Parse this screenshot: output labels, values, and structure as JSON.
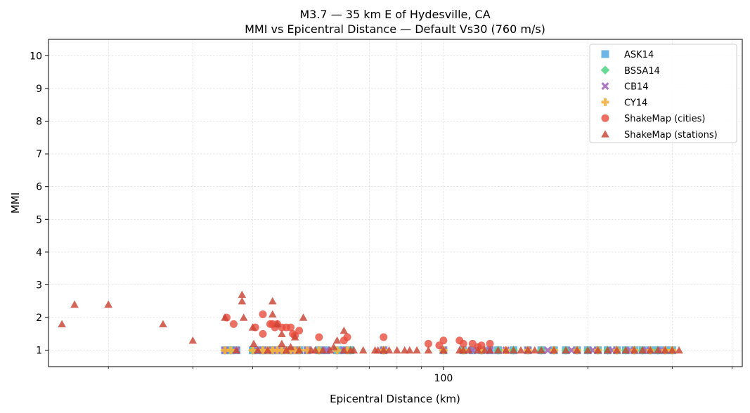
{
  "chart_data": {
    "type": "scatter",
    "title": "M3.7 — 35 km E of Hydesville, CA",
    "subtitle": "MMI vs Epicentral Distance — Default Vs30 (760 m/s)",
    "xlabel": "Epicentral Distance (km)",
    "ylabel": "MMI",
    "xscale": "log",
    "xlim": [
      15,
      420
    ],
    "ylim": [
      0.5,
      10.5
    ],
    "x_ticks": [
      100
    ],
    "x_tick_labels": [
      "100"
    ],
    "x_minor_ticks": [
      20,
      30,
      40,
      50,
      60,
      70,
      80,
      90,
      200,
      300,
      400
    ],
    "y_ticks": [
      1,
      2,
      3,
      4,
      5,
      6,
      7,
      8,
      9,
      10
    ],
    "y_tick_labels": [
      "1",
      "2",
      "3",
      "4",
      "5",
      "6",
      "7",
      "8",
      "9",
      "10"
    ],
    "grid": true,
    "legend_position": "top-right",
    "series": [
      {
        "name": "ASK14",
        "marker": "square",
        "color": "#5DADE2",
        "points": [
          [
            35,
            1
          ],
          [
            36,
            1
          ],
          [
            37,
            1
          ],
          [
            40,
            1
          ],
          [
            41,
            1
          ],
          [
            42,
            1
          ],
          [
            43,
            1
          ],
          [
            44,
            1
          ],
          [
            45,
            1
          ],
          [
            46,
            1
          ],
          [
            47,
            1
          ],
          [
            48,
            1
          ],
          [
            49,
            1
          ],
          [
            50,
            1
          ],
          [
            52,
            1
          ],
          [
            55,
            1
          ],
          [
            57,
            1
          ],
          [
            60,
            1
          ],
          [
            62,
            1
          ],
          [
            64,
            1
          ],
          [
            75,
            1
          ],
          [
            100,
            1
          ],
          [
            110,
            1
          ],
          [
            115,
            1
          ],
          [
            120,
            1
          ],
          [
            125,
            1
          ],
          [
            130,
            1
          ],
          [
            140,
            1
          ],
          [
            150,
            1
          ],
          [
            160,
            1
          ],
          [
            170,
            1
          ],
          [
            180,
            1
          ],
          [
            190,
            1
          ],
          [
            200,
            1
          ],
          [
            210,
            1
          ],
          [
            220,
            1
          ],
          [
            230,
            1
          ],
          [
            240,
            1
          ],
          [
            250,
            1
          ],
          [
            260,
            1
          ],
          [
            270,
            1
          ],
          [
            280,
            1
          ],
          [
            290,
            1
          ],
          [
            300,
            1
          ]
        ]
      },
      {
        "name": "BSSA14",
        "marker": "diamond",
        "color": "#58D68D",
        "points": [
          [
            35,
            1
          ],
          [
            36,
            1
          ],
          [
            40,
            1
          ],
          [
            42,
            1
          ],
          [
            44,
            1
          ],
          [
            46,
            1
          ],
          [
            48,
            1
          ],
          [
            50,
            1
          ],
          [
            55,
            1
          ],
          [
            60,
            1
          ],
          [
            64,
            1
          ],
          [
            75,
            1
          ],
          [
            100,
            1
          ],
          [
            110,
            1
          ],
          [
            120,
            1
          ],
          [
            130,
            1
          ],
          [
            140,
            1
          ],
          [
            150,
            1
          ],
          [
            160,
            1
          ],
          [
            170,
            1
          ],
          [
            180,
            1
          ],
          [
            190,
            1
          ],
          [
            200,
            1
          ],
          [
            210,
            1
          ],
          [
            220,
            1
          ],
          [
            230,
            1
          ],
          [
            240,
            1
          ],
          [
            250,
            1
          ],
          [
            260,
            1
          ],
          [
            270,
            1
          ],
          [
            280,
            1
          ],
          [
            290,
            1
          ],
          [
            300,
            1
          ]
        ]
      },
      {
        "name": "CB14",
        "marker": "x",
        "color": "#A569BD",
        "points": [
          [
            35,
            1
          ],
          [
            37,
            1
          ],
          [
            41,
            1
          ],
          [
            43,
            1
          ],
          [
            45,
            1
          ],
          [
            47,
            1
          ],
          [
            49,
            1
          ],
          [
            52,
            1
          ],
          [
            57,
            1
          ],
          [
            62,
            1
          ],
          [
            75,
            1
          ],
          [
            100,
            1
          ],
          [
            115,
            1
          ],
          [
            125,
            1
          ],
          [
            135,
            1
          ],
          [
            150,
            1
          ],
          [
            165,
            1
          ],
          [
            185,
            1
          ],
          [
            205,
            1
          ],
          [
            225,
            1
          ],
          [
            245,
            1
          ],
          [
            265,
            1
          ],
          [
            285,
            1
          ]
        ]
      },
      {
        "name": "CY14",
        "marker": "plus",
        "color": "#F5B041",
        "points": [
          [
            35,
            1
          ],
          [
            36,
            1
          ],
          [
            40,
            1
          ],
          [
            42,
            1
          ],
          [
            43,
            1
          ],
          [
            44,
            1
          ],
          [
            45,
            1
          ],
          [
            46,
            1
          ],
          [
            47,
            1
          ],
          [
            48,
            1
          ],
          [
            49,
            1
          ],
          [
            50,
            1
          ],
          [
            52,
            1
          ],
          [
            55,
            1
          ],
          [
            60,
            1
          ],
          [
            63,
            1
          ],
          [
            75,
            1
          ],
          [
            100,
            1
          ],
          [
            110,
            1
          ],
          [
            120,
            1
          ],
          [
            135,
            1
          ],
          [
            150,
            1
          ],
          [
            170,
            1
          ],
          [
            190,
            1
          ],
          [
            210,
            1
          ],
          [
            230,
            1
          ],
          [
            250,
            1
          ],
          [
            270,
            1
          ],
          [
            290,
            1
          ],
          [
            300,
            1
          ]
        ]
      },
      {
        "name": "ShakeMap (cities)",
        "marker": "circle",
        "color": "#E74C3C",
        "points": [
          [
            35.3,
            2
          ],
          [
            36.5,
            1.8
          ],
          [
            40.5,
            1.7
          ],
          [
            42,
            1.5
          ],
          [
            42,
            2.1
          ],
          [
            43.5,
            1.8
          ],
          [
            44,
            1.8
          ],
          [
            44.5,
            1.7
          ],
          [
            45,
            1.8
          ],
          [
            46,
            1.7
          ],
          [
            47,
            1.7
          ],
          [
            48,
            1.7
          ],
          [
            48.5,
            1.5
          ],
          [
            49,
            1.45
          ],
          [
            50,
            1.6
          ],
          [
            55,
            1.4
          ],
          [
            62,
            1.3
          ],
          [
            63,
            1.4
          ],
          [
            75,
            1.4
          ],
          [
            93,
            1.2
          ],
          [
            98,
            1.15
          ],
          [
            100,
            1.3
          ],
          [
            108,
            1.3
          ],
          [
            110,
            1.2
          ],
          [
            115,
            1.2
          ],
          [
            118,
            1.1
          ],
          [
            120,
            1.15
          ],
          [
            125,
            1.2
          ]
        ]
      },
      {
        "name": "ShakeMap (stations)",
        "marker": "triangle",
        "color": "#CB4335",
        "points": [
          [
            16,
            1.8
          ],
          [
            17,
            2.4
          ],
          [
            20,
            2.4
          ],
          [
            26,
            1.8
          ],
          [
            30,
            1.3
          ],
          [
            35,
            2
          ],
          [
            37,
            1
          ],
          [
            38,
            2.7
          ],
          [
            38,
            2.5
          ],
          [
            38.3,
            2
          ],
          [
            40,
            1.7
          ],
          [
            40.2,
            1.2
          ],
          [
            41,
            1
          ],
          [
            43,
            1
          ],
          [
            44,
            2.5
          ],
          [
            44,
            2.1
          ],
          [
            45,
            1.8
          ],
          [
            46,
            1.5
          ],
          [
            46,
            1.2
          ],
          [
            47,
            1
          ],
          [
            48,
            1.1
          ],
          [
            49,
            1.4
          ],
          [
            50,
            1
          ],
          [
            51,
            2
          ],
          [
            53,
            1
          ],
          [
            54,
            1
          ],
          [
            56,
            1
          ],
          [
            58,
            1
          ],
          [
            59,
            1.1
          ],
          [
            60,
            1.3
          ],
          [
            62,
            1.6
          ],
          [
            62,
            1
          ],
          [
            64,
            1
          ],
          [
            65,
            1
          ],
          [
            68,
            1
          ],
          [
            72,
            1
          ],
          [
            73,
            1
          ],
          [
            75,
            1
          ],
          [
            77,
            1
          ],
          [
            80,
            1
          ],
          [
            83,
            1
          ],
          [
            85,
            1
          ],
          [
            88,
            1
          ],
          [
            93,
            1
          ],
          [
            100,
            1
          ],
          [
            108,
            1
          ],
          [
            110,
            1
          ],
          [
            113,
            1
          ],
          [
            118,
            1
          ],
          [
            122,
            1
          ],
          [
            125,
            1
          ],
          [
            130,
            1
          ],
          [
            135,
            1
          ],
          [
            140,
            1
          ],
          [
            145,
            1
          ],
          [
            150,
            1
          ],
          [
            155,
            1
          ],
          [
            160,
            1
          ],
          [
            170,
            1
          ],
          [
            180,
            1
          ],
          [
            190,
            1
          ],
          [
            200,
            1
          ],
          [
            210,
            1
          ],
          [
            220,
            1
          ],
          [
            230,
            1
          ],
          [
            240,
            1
          ],
          [
            250,
            1
          ],
          [
            260,
            1
          ],
          [
            270,
            1
          ],
          [
            280,
            1
          ],
          [
            290,
            1
          ],
          [
            300,
            1
          ],
          [
            310,
            1
          ]
        ]
      }
    ]
  }
}
